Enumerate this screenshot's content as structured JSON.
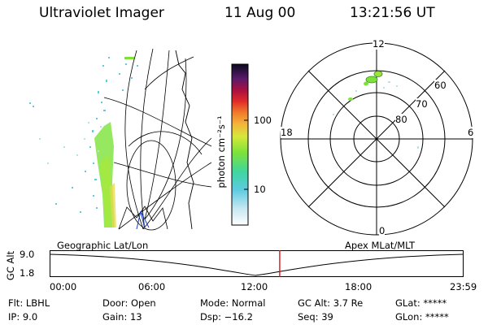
{
  "header": {
    "title": "Ultraviolet Imager",
    "date": "11 Aug 00",
    "time": "13:21:56 UT"
  },
  "colorbar": {
    "unit_label": "photon cm⁻²s⁻¹",
    "ticks": [
      "100",
      "10"
    ]
  },
  "polar_plot": {
    "mlt_labels": {
      "top": "12",
      "left": "18",
      "right": "6",
      "bottom": "0"
    },
    "lat_labels": [
      "60",
      "70",
      "80"
    ]
  },
  "map_plot": {
    "left_label": "Geographic Lat/Lon",
    "right_label": "Apex MLat/MLT"
  },
  "altitude_strip": {
    "axis_label": "GC Alt",
    "y_top": "9.0",
    "y_bottom": "1.8",
    "time_ticks": [
      "00:00",
      "06:00",
      "12:00",
      "18:00",
      "23:59"
    ],
    "marker_time_hours": 13.366
  },
  "footer": {
    "filter": "Flt: LBHL",
    "ip": "IP:  9.0",
    "door": "Door: Open",
    "gain": "Gain: 13",
    "mode": "Mode: Normal",
    "dsp": "Dsp:  −16.2",
    "gc_alt": "GC Alt: 3.7 Re",
    "seq": "Seq: 39",
    "glat": "GLat: *****",
    "glon": "GLon: *****"
  },
  "colors": {
    "marker": "#dd1111",
    "aurora_green": "#7ce23a"
  }
}
